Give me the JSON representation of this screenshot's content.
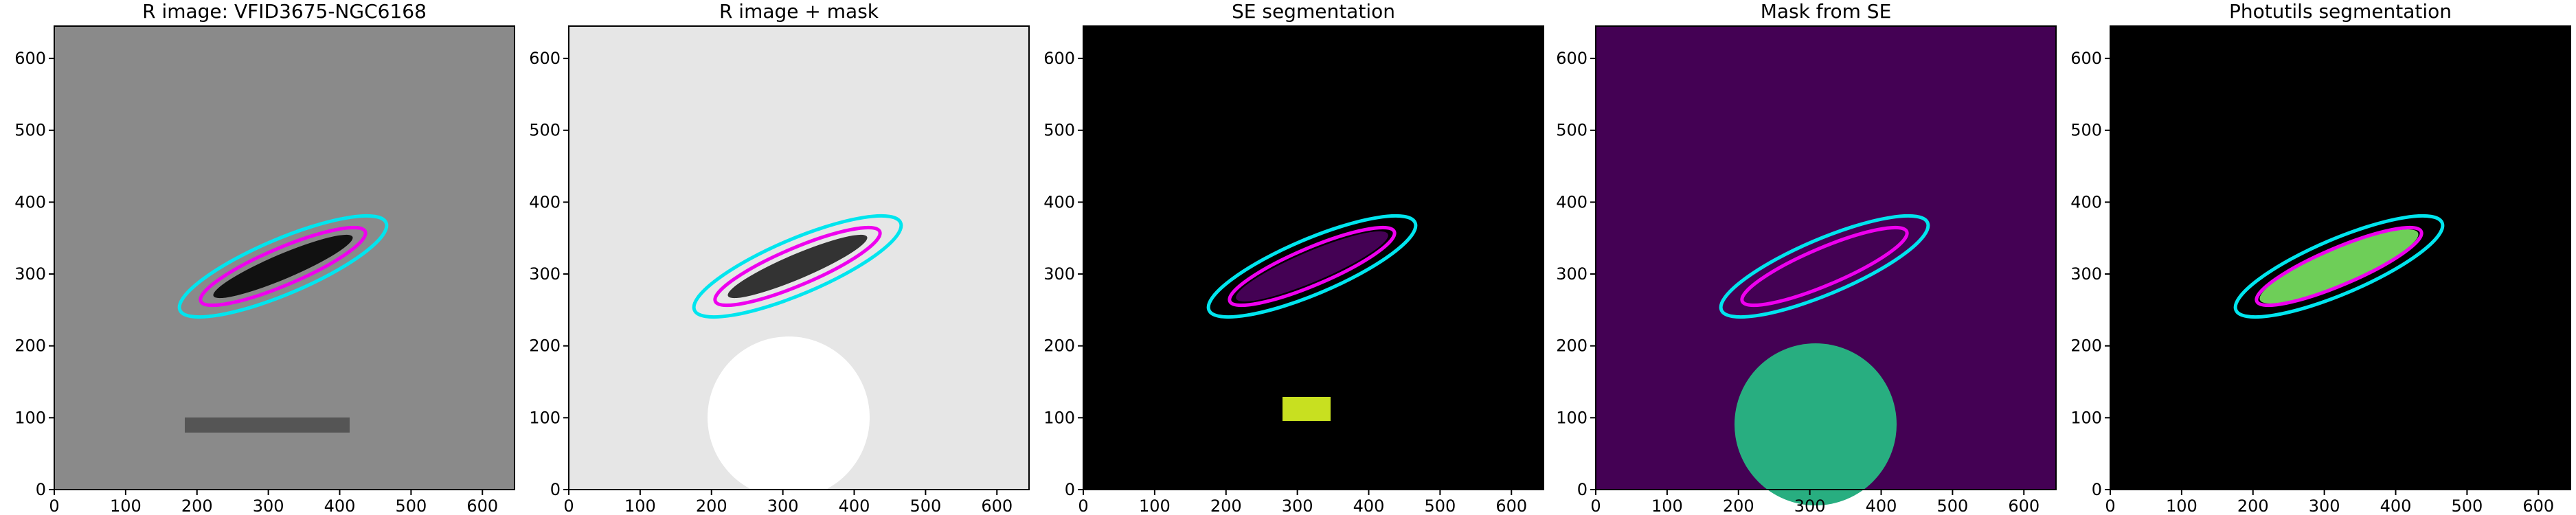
{
  "chart_data": [
    {
      "type": "image",
      "title": "R image: VFID3675-NGC6168",
      "xlim": [
        0,
        645
      ],
      "ylim": [
        0,
        645
      ],
      "xticks": [
        0,
        100,
        200,
        300,
        400,
        500,
        600
      ],
      "yticks": [
        0,
        100,
        200,
        300,
        400,
        500,
        600
      ],
      "background": "#8a8a8a"
    },
    {
      "type": "image",
      "title": "R image + mask",
      "xlim": [
        0,
        645
      ],
      "ylim": [
        0,
        645
      ],
      "xticks": [
        0,
        100,
        200,
        300,
        400,
        500,
        600
      ],
      "yticks": [
        0,
        100,
        200,
        300,
        400,
        500,
        600
      ],
      "background": "#e6e6e6"
    },
    {
      "type": "image",
      "title": "SE segmentation",
      "xlim": [
        0,
        645
      ],
      "ylim": [
        0,
        645
      ],
      "xticks": [
        0,
        100,
        200,
        300,
        400,
        500,
        600
      ],
      "yticks": [
        0,
        100,
        200,
        300,
        400,
        500,
        600
      ],
      "background": "#000000"
    },
    {
      "type": "image",
      "title": "Mask from SE",
      "xlim": [
        0,
        645
      ],
      "ylim": [
        0,
        645
      ],
      "xticks": [
        0,
        100,
        200,
        300,
        400,
        500,
        600
      ],
      "yticks": [
        0,
        100,
        200,
        300,
        400,
        500,
        600
      ],
      "background": "#440154"
    },
    {
      "type": "image",
      "title": "Photutils segmentation",
      "xlim": [
        0,
        645
      ],
      "ylim": [
        0,
        645
      ],
      "xticks": [
        0,
        100,
        200,
        300,
        400,
        500,
        600
      ],
      "yticks": [
        0,
        100,
        200,
        300,
        400,
        500,
        600
      ],
      "background": "#000000"
    }
  ]
}
